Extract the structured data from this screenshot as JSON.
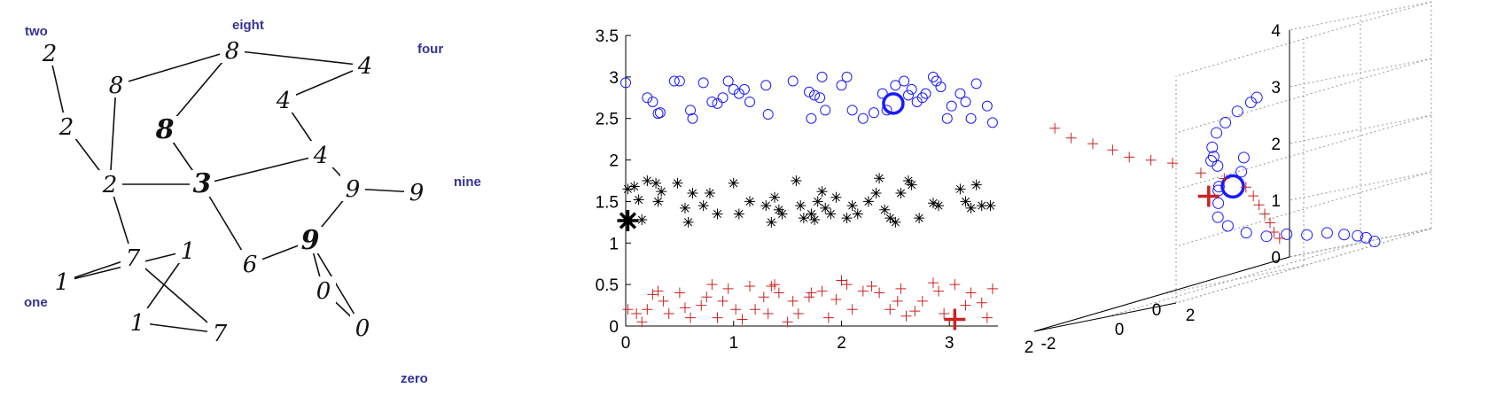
{
  "graph": {
    "label_color": "#333399",
    "nodes": [
      {
        "id": "n2a",
        "glyph": "2"
      },
      {
        "id": "n8a",
        "glyph": "8"
      },
      {
        "id": "n8b",
        "glyph": "8"
      },
      {
        "id": "n4a",
        "glyph": "4"
      },
      {
        "id": "n2b",
        "glyph": "2"
      },
      {
        "id": "n4b",
        "glyph": "4"
      },
      {
        "id": "n8c",
        "glyph": "8"
      },
      {
        "id": "n4c",
        "glyph": "4"
      },
      {
        "id": "n2c",
        "glyph": "2"
      },
      {
        "id": "n3",
        "glyph": "3"
      },
      {
        "id": "n9a",
        "glyph": "9"
      },
      {
        "id": "n9b",
        "glyph": "9"
      },
      {
        "id": "n1a",
        "glyph": "1"
      },
      {
        "id": "n7a",
        "glyph": "7"
      },
      {
        "id": "n6",
        "glyph": "6"
      },
      {
        "id": "n9c",
        "glyph": "9"
      },
      {
        "id": "n1b",
        "glyph": "1"
      },
      {
        "id": "n0a",
        "glyph": "0"
      },
      {
        "id": "n1c",
        "glyph": "1"
      },
      {
        "id": "n7b",
        "glyph": "7"
      },
      {
        "id": "n0b",
        "glyph": "0"
      }
    ],
    "edges": [
      [
        "n2a",
        "n2b"
      ],
      [
        "n2b",
        "n2c"
      ],
      [
        "n8a",
        "n2c"
      ],
      [
        "n8a",
        "n8b"
      ],
      [
        "n8b",
        "n4a"
      ],
      [
        "n8b",
        "n8c"
      ],
      [
        "n4a",
        "n4b"
      ],
      [
        "n4b",
        "n4c"
      ],
      [
        "n2c",
        "n3"
      ],
      [
        "n8c",
        "n3"
      ],
      [
        "n3",
        "n4c"
      ],
      [
        "n4c",
        "n9a"
      ],
      [
        "n9a",
        "n9b"
      ],
      [
        "n9a",
        "n9c"
      ],
      [
        "n2c",
        "n7a"
      ],
      [
        "n3",
        "n6"
      ],
      [
        "n6",
        "n9c"
      ],
      [
        "n9c",
        "n0a"
      ],
      [
        "n9c",
        "n0b"
      ],
      [
        "n0a",
        "n0b"
      ],
      [
        "n1b",
        "n7a"
      ],
      [
        "n1a",
        "n1b"
      ],
      [
        "n7a",
        "n7b"
      ],
      [
        "n1a",
        "n1c"
      ],
      [
        "n1c",
        "n7b"
      ]
    ],
    "class_labels": [
      {
        "text": "two"
      },
      {
        "text": "eight"
      },
      {
        "text": "four"
      },
      {
        "text": "nine"
      },
      {
        "text": "one"
      },
      {
        "text": "zero"
      }
    ]
  },
  "chart_data": [
    {
      "type": "scatter",
      "xlim": [
        0,
        3.45
      ],
      "ylim": [
        0,
        3.5
      ],
      "x_ticks": [
        "0",
        "1",
        "2",
        "3"
      ],
      "y_ticks": [
        "0",
        "0.5",
        "1",
        "1.5",
        "2",
        "2.5",
        "3",
        "3.5"
      ],
      "grid": false,
      "series": [
        {
          "marker": "circle",
          "color": "#1a1aff",
          "points": [
            [
              0.0,
              2.93
            ],
            [
              0.2,
              2.75
            ],
            [
              0.25,
              2.7
            ],
            [
              0.3,
              2.56
            ],
            [
              0.32,
              2.57
            ],
            [
              0.45,
              2.95
            ],
            [
              0.5,
              2.95
            ],
            [
              0.6,
              2.6
            ],
            [
              0.62,
              2.5
            ],
            [
              0.72,
              2.93
            ],
            [
              0.8,
              2.7
            ],
            [
              0.85,
              2.68
            ],
            [
              0.9,
              2.75
            ],
            [
              0.95,
              2.95
            ],
            [
              1.0,
              2.85
            ],
            [
              1.05,
              2.8
            ],
            [
              1.1,
              2.85
            ],
            [
              1.15,
              2.7
            ],
            [
              1.3,
              2.9
            ],
            [
              1.32,
              2.55
            ],
            [
              1.55,
              2.95
            ],
            [
              1.7,
              2.82
            ],
            [
              1.72,
              2.5
            ],
            [
              1.75,
              2.78
            ],
            [
              1.8,
              2.75
            ],
            [
              1.82,
              3.0
            ],
            [
              1.85,
              2.6
            ],
            [
              2.0,
              2.9
            ],
            [
              2.05,
              3.0
            ],
            [
              2.1,
              2.6
            ],
            [
              2.2,
              2.5
            ],
            [
              2.3,
              2.57
            ],
            [
              2.38,
              2.8
            ],
            [
              2.42,
              2.6
            ],
            [
              2.5,
              2.9
            ],
            [
              2.58,
              2.95
            ],
            [
              2.62,
              2.78
            ],
            [
              2.65,
              2.85
            ],
            [
              2.7,
              2.7
            ],
            [
              2.75,
              2.75
            ],
            [
              2.78,
              2.8
            ],
            [
              2.85,
              3.0
            ],
            [
              2.88,
              2.95
            ],
            [
              2.92,
              2.88
            ],
            [
              2.98,
              2.5
            ],
            [
              3.02,
              2.65
            ],
            [
              3.1,
              2.8
            ],
            [
              3.15,
              2.7
            ],
            [
              3.2,
              2.5
            ],
            [
              3.25,
              2.92
            ],
            [
              3.35,
              2.65
            ],
            [
              3.4,
              2.45
            ]
          ],
          "highlight": [
            2.48,
            2.68
          ]
        },
        {
          "marker": "asterisk",
          "color": "#000000",
          "points": [
            [
              0.02,
              1.65
            ],
            [
              0.08,
              1.68
            ],
            [
              0.12,
              1.52
            ],
            [
              0.15,
              1.28
            ],
            [
              0.2,
              1.75
            ],
            [
              0.28,
              1.72
            ],
            [
              0.3,
              1.5
            ],
            [
              0.33,
              1.62
            ],
            [
              0.48,
              1.72
            ],
            [
              0.55,
              1.42
            ],
            [
              0.58,
              1.25
            ],
            [
              0.62,
              1.6
            ],
            [
              0.72,
              1.45
            ],
            [
              0.78,
              1.6
            ],
            [
              0.85,
              1.35
            ],
            [
              1.0,
              1.72
            ],
            [
              1.05,
              1.35
            ],
            [
              1.15,
              1.5
            ],
            [
              1.3,
              1.45
            ],
            [
              1.35,
              1.25
            ],
            [
              1.38,
              1.55
            ],
            [
              1.42,
              1.4
            ],
            [
              1.45,
              1.35
            ],
            [
              1.58,
              1.75
            ],
            [
              1.62,
              1.45
            ],
            [
              1.65,
              1.3
            ],
            [
              1.72,
              1.35
            ],
            [
              1.75,
              1.28
            ],
            [
              1.78,
              1.5
            ],
            [
              1.82,
              1.62
            ],
            [
              1.85,
              1.42
            ],
            [
              1.9,
              1.35
            ],
            [
              1.95,
              1.55
            ],
            [
              2.05,
              1.3
            ],
            [
              2.1,
              1.45
            ],
            [
              2.15,
              1.35
            ],
            [
              2.25,
              1.5
            ],
            [
              2.32,
              1.6
            ],
            [
              2.35,
              1.78
            ],
            [
              2.4,
              1.4
            ],
            [
              2.45,
              1.3
            ],
            [
              2.5,
              1.25
            ],
            [
              2.55,
              1.6
            ],
            [
              2.62,
              1.75
            ],
            [
              2.65,
              1.7
            ],
            [
              2.72,
              1.3
            ],
            [
              2.85,
              1.48
            ],
            [
              2.9,
              1.45
            ],
            [
              3.1,
              1.65
            ],
            [
              3.15,
              1.5
            ],
            [
              3.2,
              1.42
            ],
            [
              3.25,
              1.7
            ],
            [
              3.3,
              1.45
            ],
            [
              3.38,
              1.45
            ]
          ],
          "highlight": [
            0.02,
            1.27
          ]
        },
        {
          "marker": "plus",
          "color": "#cc2222",
          "points": [
            [
              0.02,
              0.2
            ],
            [
              0.1,
              0.15
            ],
            [
              0.15,
              0.05
            ],
            [
              0.2,
              0.2
            ],
            [
              0.25,
              0.38
            ],
            [
              0.3,
              0.42
            ],
            [
              0.35,
              0.3
            ],
            [
              0.4,
              0.15
            ],
            [
              0.5,
              0.4
            ],
            [
              0.55,
              0.22
            ],
            [
              0.6,
              0.1
            ],
            [
              0.7,
              0.25
            ],
            [
              0.75,
              0.35
            ],
            [
              0.8,
              0.5
            ],
            [
              0.85,
              0.1
            ],
            [
              0.9,
              0.3
            ],
            [
              0.95,
              0.45
            ],
            [
              1.02,
              0.2
            ],
            [
              1.08,
              0.08
            ],
            [
              1.15,
              0.48
            ],
            [
              1.2,
              0.2
            ],
            [
              1.28,
              0.35
            ],
            [
              1.32,
              0.15
            ],
            [
              1.35,
              0.48
            ],
            [
              1.38,
              0.5
            ],
            [
              1.42,
              0.4
            ],
            [
              1.5,
              0.05
            ],
            [
              1.55,
              0.3
            ],
            [
              1.6,
              0.15
            ],
            [
              1.7,
              0.35
            ],
            [
              1.72,
              0.4
            ],
            [
              1.82,
              0.42
            ],
            [
              1.88,
              0.1
            ],
            [
              1.95,
              0.32
            ],
            [
              2.0,
              0.55
            ],
            [
              2.05,
              0.5
            ],
            [
              2.1,
              0.2
            ],
            [
              2.2,
              0.42
            ],
            [
              2.28,
              0.48
            ],
            [
              2.35,
              0.4
            ],
            [
              2.45,
              0.2
            ],
            [
              2.52,
              0.3
            ],
            [
              2.55,
              0.45
            ],
            [
              2.6,
              0.12
            ],
            [
              2.68,
              0.18
            ],
            [
              2.75,
              0.3
            ],
            [
              2.85,
              0.52
            ],
            [
              2.9,
              0.42
            ],
            [
              2.95,
              0.15
            ],
            [
              3.05,
              0.5
            ],
            [
              3.15,
              0.25
            ],
            [
              3.2,
              0.4
            ],
            [
              3.3,
              0.28
            ],
            [
              3.35,
              0.1
            ],
            [
              3.4,
              0.45
            ]
          ],
          "highlight": [
            3.05,
            0.08
          ]
        }
      ]
    },
    {
      "type": "scatter",
      "x_ticks": [
        "2",
        "0"
      ],
      "y_ticks": [
        "-2",
        "0",
        "2"
      ],
      "z_ticks": [
        "0",
        "1",
        "2",
        "3",
        "4"
      ],
      "zlim": [
        0,
        4
      ],
      "grid": true,
      "series": [
        {
          "marker": "circle",
          "color": "#1a1aff",
          "points": [
            [
              0.2,
              -0.05,
              1.65
            ],
            [
              0.35,
              0.2,
              2.1
            ],
            [
              0.55,
              0.45,
              2.3
            ],
            [
              0.7,
              0.65,
              2.25
            ],
            [
              0.85,
              0.95,
              2.5
            ],
            [
              0.95,
              1.25,
              2.75
            ],
            [
              0.95,
              1.5,
              2.9
            ],
            [
              0.9,
              1.75,
              3.05
            ],
            [
              0.8,
              1.95,
              3.15
            ],
            [
              0.65,
              1.85,
              3.2
            ],
            [
              0.3,
              0.85,
              2.15
            ],
            [
              0.2,
              0.6,
              1.9
            ],
            [
              0.05,
              -0.3,
              1.7
            ],
            [
              -0.05,
              -0.5,
              1.4
            ],
            [
              -0.1,
              -0.6,
              1.15
            ],
            [
              -0.2,
              -0.5,
              0.95
            ],
            [
              -0.35,
              -0.25,
              0.75
            ],
            [
              -0.5,
              0.05,
              0.6
            ],
            [
              -0.65,
              0.35,
              0.55
            ],
            [
              -0.8,
              0.65,
              0.45
            ],
            [
              -0.95,
              0.95,
              0.4
            ],
            [
              -1.05,
              1.25,
              0.3
            ],
            [
              -1.15,
              1.45,
              0.22
            ],
            [
              -1.2,
              1.6,
              0.15
            ],
            [
              -1.25,
              1.75,
              0.05
            ]
          ],
          "highlight": [
            0.0,
            0.0,
            1.65
          ]
        },
        {
          "marker": "plus",
          "color": "#cc2222",
          "points": [
            [
              1.9,
              -1.6,
              3.5
            ],
            [
              1.7,
              -1.5,
              3.25
            ],
            [
              1.5,
              -1.25,
              3.05
            ],
            [
              1.3,
              -1.05,
              2.85
            ],
            [
              1.15,
              -0.85,
              2.65
            ],
            [
              0.95,
              -0.6,
              2.5
            ],
            [
              0.75,
              -0.35,
              2.35
            ],
            [
              0.5,
              0.0,
              2.05
            ],
            [
              0.3,
              0.3,
              1.85
            ],
            [
              0.1,
              0.55,
              1.6
            ],
            [
              -0.1,
              0.4,
              1.4
            ],
            [
              -0.3,
              0.2,
              1.2
            ],
            [
              -0.5,
              0.0,
              1.0
            ],
            [
              -0.75,
              -0.3,
              0.8
            ],
            [
              -0.95,
              -0.55,
              0.6
            ],
            [
              -1.15,
              -0.75,
              0.45
            ]
          ],
          "highlight": [
            0.85,
            0.85,
            1.65
          ]
        }
      ]
    }
  ]
}
